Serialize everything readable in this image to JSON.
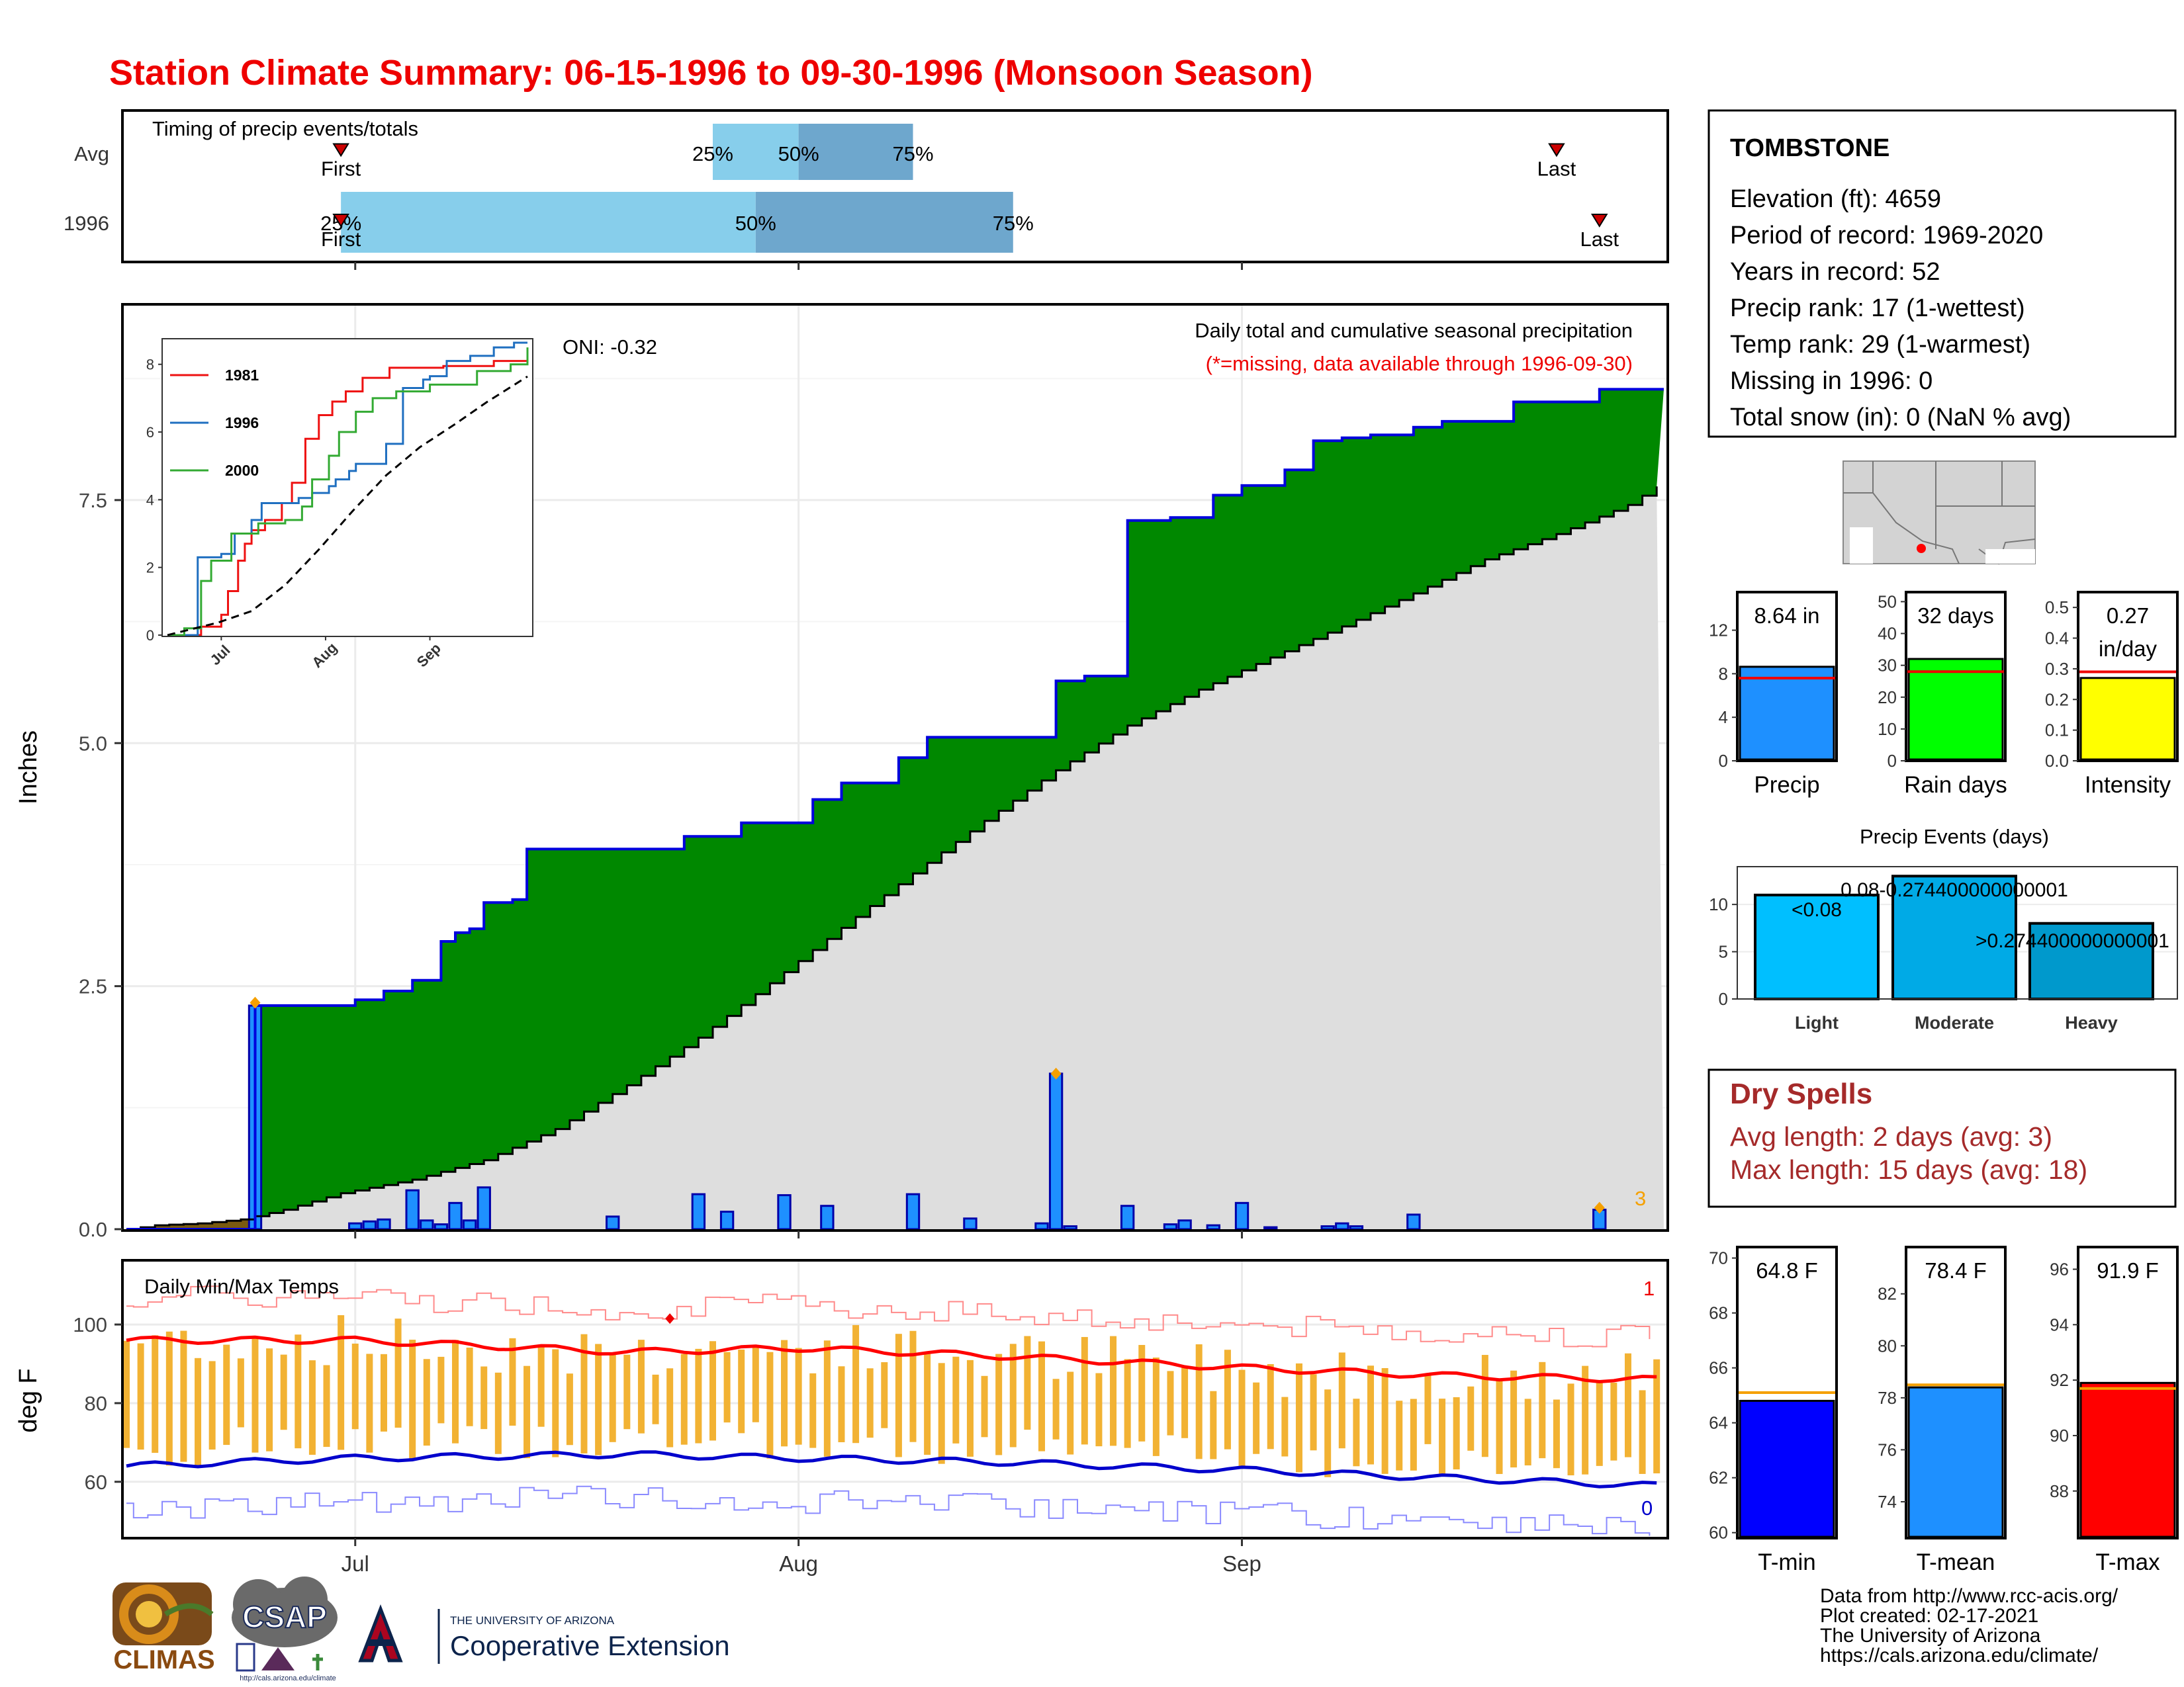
{
  "title": "Station Climate Summary: 06-15-1996 to 09-30-1996 (Monsoon Season)",
  "colors": {
    "title": "#ee0000",
    "precip_bar": "#1e90ff",
    "cum_above_avg": "#008800",
    "avg_fill": "#dedede",
    "prior_fill": "#7a5a10",
    "tmax_line": "#ff0000",
    "tmin_line": "#0000cc",
    "temp_bar": "#f2b233",
    "dry_spell_text": "#a52a2a"
  },
  "timing": {
    "label": "Timing of precip events/totals",
    "row_labels": [
      "Avg",
      "1996"
    ],
    "first_label": "First",
    "last_label": "Last",
    "pct_labels": [
      "25%",
      "50%",
      "75%"
    ]
  },
  "main": {
    "ylabel": "Inches",
    "header": "Daily total and cumulative seasonal precipitation",
    "note": "(*=missing, data available through 1996-09-30)",
    "oni": "ONI: -0.32",
    "count_label": "3"
  },
  "temps": {
    "label": "Daily Min/Max Temps",
    "ylabel": "deg F",
    "count_hi": "1",
    "count_lo": "0"
  },
  "station": {
    "name": "TOMBSTONE",
    "lines": [
      "Elevation (ft): 4659",
      "Period of record: 1969-2020",
      "Years in record: 52",
      "Precip rank: 17 (1-wettest)",
      "Temp rank: 29 (1-warmest)",
      "Missing in 1996: 0",
      "Total snow (in): 0 (NaN % avg)"
    ]
  },
  "dry_spells": {
    "title": "Dry Spells",
    "avg": "Avg length: 2 days (avg: 3)",
    "max": "Max length: 15 days (avg: 18)"
  },
  "footer": {
    "lines": [
      "Data from http://www.rcc-acis.org/",
      "Plot created: 02-17-2021",
      "The University of Arizona",
      "https://cals.arizona.edu/climate/"
    ],
    "logo_climas": "CLIMAS",
    "logo_csap": "CSAP",
    "logo_csap_url": "http://cals.arizona.edu/climate",
    "logo_ua_small": "THE UNIVERSITY OF ARIZONA",
    "logo_ua_big": "Cooperative Extension"
  },
  "chart_data": [
    {
      "id": "timing",
      "type": "bar",
      "title": "Timing of precip events/totals",
      "rows": [
        {
          "name": "Avg",
          "first": "1996-06-30",
          "q25": "1996-07-26",
          "q50": "1996-08-01",
          "q75": "1996-08-09",
          "last": "1996-09-23"
        },
        {
          "name": "1996",
          "first": "1996-06-30",
          "q25": "1996-06-30",
          "q50": "1996-07-29",
          "q75": "1996-08-16",
          "last": "1996-09-26"
        }
      ]
    },
    {
      "id": "cumulative",
      "type": "area",
      "title": "Daily total and cumulative seasonal precipitation",
      "ylabel": "Inches",
      "ylim": [
        0,
        9.5
      ],
      "yticks": [
        0.0,
        2.5,
        5.0,
        7.5
      ],
      "xticks": [
        "Jul",
        "Aug",
        "Sep"
      ],
      "x_range": [
        "1996-06-15",
        "1996-09-30"
      ],
      "cum_1996": [
        [
          "1996-06-15",
          0
        ],
        [
          "1996-06-23",
          0
        ],
        [
          "1996-06-24",
          2.3
        ],
        [
          "1996-06-30",
          2.3
        ],
        [
          "1996-07-01",
          2.36
        ],
        [
          "1996-07-03",
          2.45
        ],
        [
          "1996-07-05",
          2.56
        ],
        [
          "1996-07-07",
          2.96
        ],
        [
          "1996-07-08",
          3.05
        ],
        [
          "1996-07-09",
          3.09
        ],
        [
          "1996-07-10",
          3.36
        ],
        [
          "1996-07-12",
          3.39
        ],
        [
          "1996-07-13",
          3.91
        ],
        [
          "1996-07-24",
          4.04
        ],
        [
          "1996-07-28",
          4.18
        ],
        [
          "1996-08-02",
          4.42
        ],
        [
          "1996-08-04",
          4.59
        ],
        [
          "1996-08-08",
          4.85
        ],
        [
          "1996-08-10",
          5.06
        ],
        [
          "1996-08-19",
          5.64
        ],
        [
          "1996-08-21",
          5.69
        ],
        [
          "1996-08-24",
          7.29
        ],
        [
          "1996-08-27",
          7.32
        ],
        [
          "1996-08-30",
          7.55
        ],
        [
          "1996-09-01",
          7.65
        ],
        [
          "1996-09-04",
          7.81
        ],
        [
          "1996-09-06",
          8.11
        ],
        [
          "1996-09-08",
          8.14
        ],
        [
          "1996-09-10",
          8.17
        ],
        [
          "1996-09-13",
          8.25
        ],
        [
          "1996-09-15",
          8.31
        ],
        [
          "1996-09-20",
          8.51
        ],
        [
          "1996-09-26",
          8.64
        ]
      ],
      "cum_avg": [
        [
          "1996-06-15",
          0
        ],
        [
          "1996-06-17",
          0.04
        ],
        [
          "1996-06-20",
          0.06
        ],
        [
          "1996-06-23",
          0.1
        ],
        [
          "1996-06-26",
          0.2
        ],
        [
          "1996-06-30",
          0.37
        ],
        [
          "1996-07-05",
          0.51
        ],
        [
          "1996-07-10",
          0.71
        ],
        [
          "1996-07-15",
          1.03
        ],
        [
          "1996-07-20",
          1.48
        ],
        [
          "1996-07-25",
          1.97
        ],
        [
          "1996-07-30",
          2.53
        ],
        [
          "1996-08-04",
          3.1
        ],
        [
          "1996-08-09",
          3.66
        ],
        [
          "1996-08-14",
          4.2
        ],
        [
          "1996-08-19",
          4.72
        ],
        [
          "1996-08-24",
          5.18
        ],
        [
          "1996-08-29",
          5.55
        ],
        [
          "1996-09-03",
          5.88
        ],
        [
          "1996-09-08",
          6.2
        ],
        [
          "1996-09-13",
          6.54
        ],
        [
          "1996-09-18",
          6.89
        ],
        [
          "1996-09-23",
          7.15
        ],
        [
          "1996-09-28",
          7.45
        ],
        [
          "1996-09-30",
          7.64
        ]
      ],
      "daily_precip": [
        [
          "1996-06-24",
          2.3
        ],
        [
          "1996-07-01",
          0.06
        ],
        [
          "1996-07-02",
          0.08
        ],
        [
          "1996-07-03",
          0.1
        ],
        [
          "1996-07-05",
          0.4
        ],
        [
          "1996-07-06",
          0.09
        ],
        [
          "1996-07-07",
          0.05
        ],
        [
          "1996-07-08",
          0.27
        ],
        [
          "1996-07-09",
          0.09
        ],
        [
          "1996-07-10",
          0.43
        ],
        [
          "1996-07-19",
          0.13
        ],
        [
          "1996-07-25",
          0.36
        ],
        [
          "1996-07-27",
          0.18
        ],
        [
          "1996-07-31",
          0.35
        ],
        [
          "1996-08-03",
          0.24
        ],
        [
          "1996-08-09",
          0.36
        ],
        [
          "1996-08-13",
          0.11
        ],
        [
          "1996-08-18",
          0.06
        ],
        [
          "1996-08-19",
          1.6
        ],
        [
          "1996-08-20",
          0.03
        ],
        [
          "1996-08-24",
          0.24
        ],
        [
          "1996-08-27",
          0.05
        ],
        [
          "1996-08-28",
          0.09
        ],
        [
          "1996-08-30",
          0.04
        ],
        [
          "1996-09-01",
          0.27
        ],
        [
          "1996-09-03",
          0.02
        ],
        [
          "1996-09-07",
          0.03
        ],
        [
          "1996-09-08",
          0.06
        ],
        [
          "1996-09-09",
          0.03
        ],
        [
          "1996-09-13",
          0.15
        ],
        [
          "1996-09-26",
          0.2
        ]
      ],
      "missing_markers": [
        [
          "1996-06-24",
          2.33
        ],
        [
          "1996-08-19",
          1.6
        ],
        [
          "1996-09-26",
          0.22
        ]
      ]
    },
    {
      "id": "inset",
      "type": "line",
      "xticks": [
        "Jul",
        "Aug",
        "Sep"
      ],
      "yticks": [
        0,
        2,
        4,
        6,
        8
      ],
      "ylim": [
        0,
        8.6
      ],
      "series": [
        {
          "name": "1981",
          "color": "#ee1111",
          "values": [
            [
              "06-15",
              0
            ],
            [
              "06-25",
              0.25
            ],
            [
              "07-01",
              0.6
            ],
            [
              "07-03",
              1.3
            ],
            [
              "07-06",
              2.2
            ],
            [
              "07-08",
              2.7
            ],
            [
              "07-10",
              3.1
            ],
            [
              "07-14",
              3.4
            ],
            [
              "07-19",
              3.9
            ],
            [
              "07-22",
              4.5
            ],
            [
              "07-26",
              5.8
            ],
            [
              "07-30",
              6.5
            ],
            [
              "08-03",
              6.9
            ],
            [
              "08-07",
              7.2
            ],
            [
              "08-12",
              7.6
            ],
            [
              "08-20",
              7.9
            ],
            [
              "09-05",
              7.95
            ],
            [
              "09-20",
              8.1
            ],
            [
              "09-30",
              8.3
            ]
          ]
        },
        {
          "name": "1996",
          "color": "#1f6fc0",
          "values": [
            [
              "06-15",
              0
            ],
            [
              "06-23",
              0
            ],
            [
              "06-24",
              2.3
            ],
            [
              "07-01",
              2.4
            ],
            [
              "07-05",
              3.0
            ],
            [
              "07-10",
              3.4
            ],
            [
              "07-13",
              3.9
            ],
            [
              "07-24",
              4.05
            ],
            [
              "07-28",
              4.2
            ],
            [
              "08-02",
              4.4
            ],
            [
              "08-04",
              4.6
            ],
            [
              "08-08",
              4.85
            ],
            [
              "08-10",
              5.06
            ],
            [
              "08-19",
              5.65
            ],
            [
              "08-24",
              7.3
            ],
            [
              "08-30",
              7.55
            ],
            [
              "09-01",
              7.65
            ],
            [
              "09-06",
              8.1
            ],
            [
              "09-13",
              8.25
            ],
            [
              "09-20",
              8.5
            ],
            [
              "09-26",
              8.64
            ],
            [
              "09-30",
              8.64
            ]
          ]
        },
        {
          "name": "2000",
          "color": "#33aa33",
          "values": [
            [
              "06-15",
              0
            ],
            [
              "06-20",
              0.2
            ],
            [
              "06-25",
              1.6
            ],
            [
              "06-28",
              2.2
            ],
            [
              "07-04",
              3.0
            ],
            [
              "07-12",
              3.3
            ],
            [
              "07-20",
              3.4
            ],
            [
              "07-25",
              3.8
            ],
            [
              "07-28",
              4.6
            ],
            [
              "08-02",
              5.3
            ],
            [
              "08-05",
              6.0
            ],
            [
              "08-10",
              6.6
            ],
            [
              "08-15",
              7.0
            ],
            [
              "08-22",
              7.2
            ],
            [
              "09-01",
              7.4
            ],
            [
              "09-15",
              7.8
            ],
            [
              "09-25",
              8.0
            ],
            [
              "09-30",
              8.5
            ]
          ]
        },
        {
          "name": "avg",
          "color": "#000000",
          "values": [
            [
              "06-15",
              0
            ],
            [
              "06-30",
              0.37
            ],
            [
              "07-10",
              0.71
            ],
            [
              "07-20",
              1.48
            ],
            [
              "07-30",
              2.53
            ],
            [
              "08-09",
              3.66
            ],
            [
              "08-19",
              4.72
            ],
            [
              "08-29",
              5.55
            ],
            [
              "09-08",
              6.2
            ],
            [
              "09-18",
              6.89
            ],
            [
              "09-30",
              7.64
            ]
          ]
        }
      ]
    },
    {
      "id": "temps",
      "type": "line",
      "title": "Daily Min/Max Temps",
      "ylabel": "deg F",
      "ylim": [
        46,
        116
      ],
      "yticks": [
        60,
        80,
        100
      ],
      "note": "daily bars span min-max; avg max (red) ~95 F falling to ~86 F; avg min (blue) ~64-67 F falling to ~59 F",
      "avg_max": [
        [
          "06-15",
          96
        ],
        [
          "07-01",
          96
        ],
        [
          "07-20",
          93
        ],
        [
          "08-01",
          94
        ],
        [
          "08-15",
          92
        ],
        [
          "09-01",
          89
        ],
        [
          "09-15",
          87
        ],
        [
          "09-30",
          86
        ]
      ],
      "avg_min": [
        [
          "06-15",
          64
        ],
        [
          "07-01",
          66
        ],
        [
          "07-20",
          67
        ],
        [
          "08-01",
          66
        ],
        [
          "08-15",
          65
        ],
        [
          "09-01",
          63
        ],
        [
          "09-15",
          61
        ],
        [
          "09-30",
          59
        ]
      ]
    },
    {
      "id": "totals",
      "type": "bar",
      "categories": [
        "Precip",
        "Rain days",
        "Intensity"
      ],
      "values": [
        8.64,
        32,
        0.27
      ],
      "averages": [
        7.6,
        28,
        0.29
      ],
      "value_labels": [
        "8.64 in",
        "32 days",
        "0.27 in/day"
      ],
      "yticks": [
        [
          0,
          4,
          8,
          12
        ],
        [
          0,
          10,
          20,
          30,
          40,
          50
        ],
        [
          0.0,
          0.1,
          0.2,
          0.3,
          0.4,
          0.5
        ]
      ],
      "ylims": [
        [
          0,
          15.5
        ],
        [
          0,
          53
        ],
        [
          0,
          0.55
        ]
      ]
    },
    {
      "id": "events",
      "type": "bar",
      "title": "Precip Events (days)",
      "categories": [
        "Light",
        "Moderate",
        "Heavy"
      ],
      "values": [
        11,
        13,
        8
      ],
      "value_labels": [
        "<0.08",
        "0.08-0.274400000000001",
        ">0.274400000000001"
      ],
      "yticks": [
        0,
        5,
        10
      ],
      "ylim": [
        0,
        14
      ]
    },
    {
      "id": "temp_means",
      "type": "bar",
      "categories": [
        "T-min",
        "T-mean",
        "T-max"
      ],
      "values": [
        64.8,
        78.4,
        91.9
      ],
      "averages": [
        65.1,
        78.5,
        91.7
      ],
      "value_labels": [
        "64.8 F",
        "78.4 F",
        "91.9 F"
      ],
      "yticks": [
        [
          60,
          62,
          64,
          66,
          68,
          70
        ],
        [
          74,
          76,
          78,
          80,
          82
        ],
        [
          88,
          90,
          92,
          94,
          96
        ]
      ],
      "ylims": [
        [
          59.8,
          70.4
        ],
        [
          72.6,
          83.8
        ],
        [
          86.3,
          96.8
        ]
      ]
    }
  ]
}
